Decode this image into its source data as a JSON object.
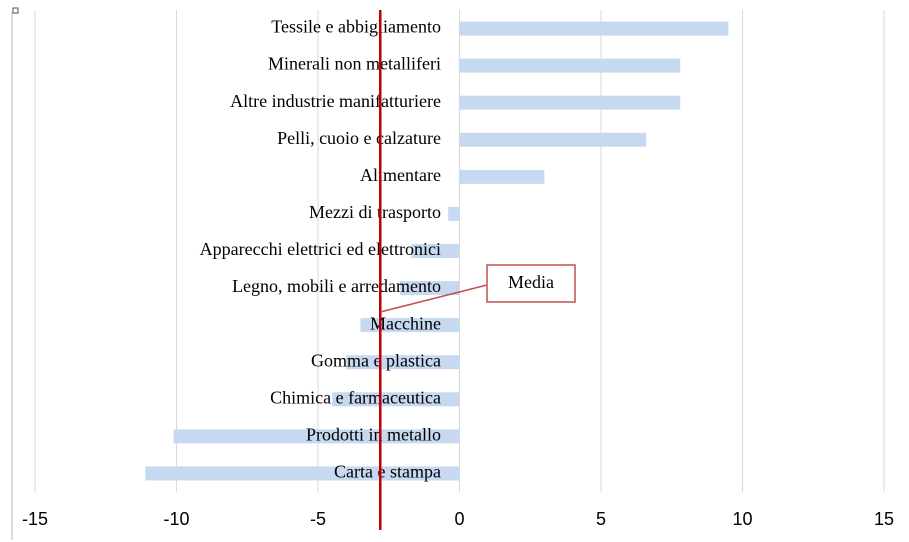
{
  "chart_data": {
    "type": "bar",
    "orientation": "horizontal",
    "categories": [
      "Tessile e abbigliamento",
      "Minerali non metalliferi",
      "Altre industrie manifatturiere",
      "Pelli, cuoio e calzature",
      "Alimentare",
      "Mezzi di trasporto",
      "Apparecchi elettrici ed elettronici",
      "Legno, mobili e arredamento",
      "Macchine",
      "Gomma e plastica",
      "Chimica e farmaceutica",
      "Prodotti in metallo",
      "Carta e stampa"
    ],
    "values": [
      9.5,
      7.8,
      7.8,
      6.6,
      3.0,
      -0.4,
      -1.7,
      -2.1,
      -3.5,
      -4.0,
      -4.5,
      -10.1,
      -11.1
    ],
    "color": "#c6d9f0",
    "xlim": [
      -15,
      15
    ],
    "xticks": [
      -15,
      -10,
      -5,
      0,
      5,
      10,
      15
    ],
    "grid": true,
    "reference_line": {
      "label": "Media",
      "value": -2.8,
      "color": "#c00000"
    }
  }
}
